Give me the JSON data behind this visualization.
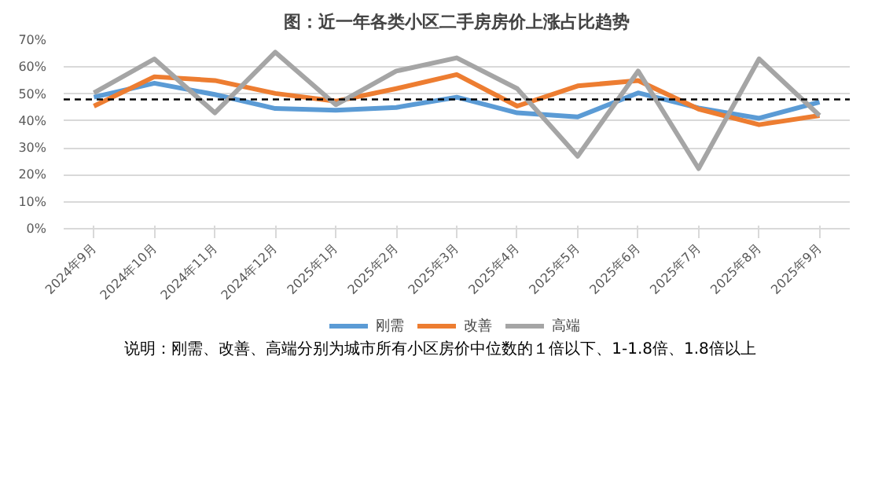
{
  "chart_data": {
    "type": "line",
    "title": "图：近一年各类小区二手房房价上涨占比趋势",
    "categories": [
      "2024年9月",
      "2024年10月",
      "2024年11月",
      "2024年12月",
      "2025年1月",
      "2025年2月",
      "2025年3月",
      "2025年4月",
      "2025年5月",
      "2025年6月",
      "2025年7月",
      "2025年8月",
      "2025年9月"
    ],
    "series": [
      {
        "name": "刚需",
        "color": "#5b9bd5",
        "values": [
          48.8,
          54,
          49.8,
          44.6,
          44,
          45,
          48.8,
          43,
          41.5,
          50.4,
          44.8,
          41,
          47
        ]
      },
      {
        "name": "改善",
        "color": "#ed7d31",
        "values": [
          45.5,
          56.4,
          55,
          50.2,
          47.3,
          52,
          57.2,
          45.5,
          53,
          55,
          44.4,
          38.6,
          42
        ]
      },
      {
        "name": "高端",
        "color": "#a5a5a5",
        "values": [
          50.4,
          63,
          43,
          65.5,
          46,
          58.5,
          63.4,
          52,
          26.9,
          58.5,
          22.3,
          63,
          42
        ]
      }
    ],
    "ylim": [
      0,
      70
    ],
    "yticks": [
      {
        "value": 0,
        "label": "0%"
      },
      {
        "value": 10,
        "label": "10%"
      },
      {
        "value": 20,
        "label": "20%"
      },
      {
        "value": 30,
        "label": "30%"
      },
      {
        "value": 40,
        "label": "40%"
      },
      {
        "value": 50,
        "label": "50%"
      },
      {
        "value": 60,
        "label": "60%"
      },
      {
        "value": 70,
        "label": "70%"
      }
    ],
    "ref_lines": [
      {
        "axis": "y",
        "value": 48,
        "color": "#000000",
        "line_style": "dashed"
      }
    ],
    "grid": "y",
    "legend": "bottom",
    "marker": "none",
    "line_style": "solid",
    "annotations": [
      "说明：刚需、改善、高端分别为城市所有小区房价中位数的１倍以下、1-1.8倍、1.8倍以上"
    ]
  }
}
